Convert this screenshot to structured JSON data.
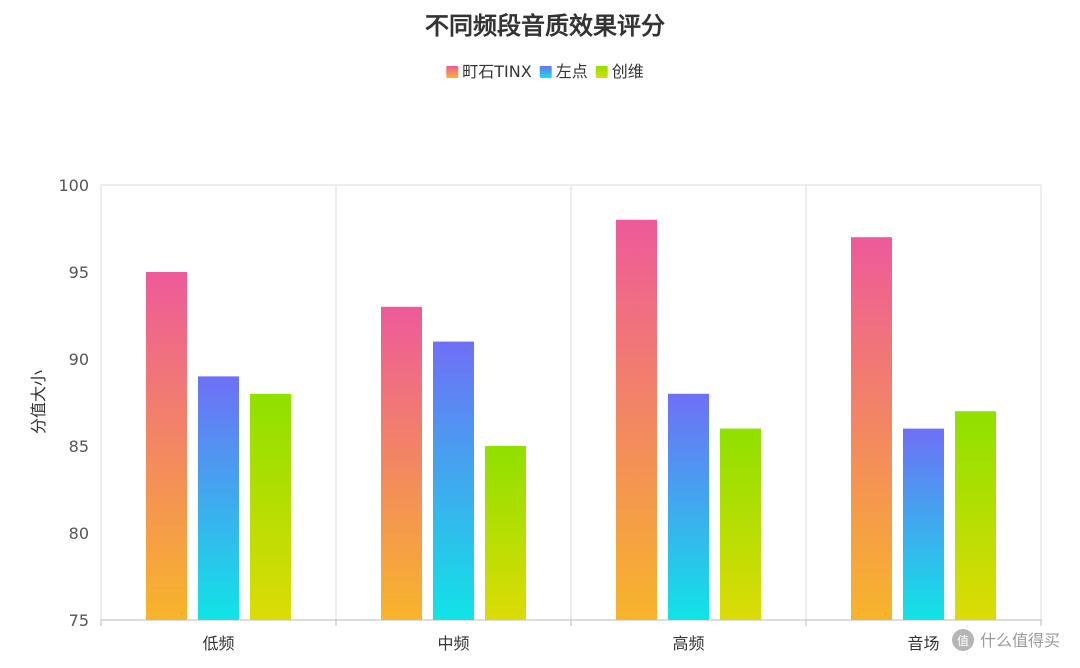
{
  "chart_data": {
    "type": "bar",
    "title": "不同频段音质效果评分",
    "xlabel": "",
    "ylabel": "分值大小",
    "categories": [
      "低频",
      "中频",
      "高频",
      "音场"
    ],
    "ylim": [
      75,
      100
    ],
    "yticks": [
      75,
      80,
      85,
      90,
      95,
      100
    ],
    "series": [
      {
        "name": "町石TINX",
        "values": [
          95,
          93,
          98,
          97
        ],
        "color_top": "#ee5a9a",
        "color_bottom": "#f7b52a"
      },
      {
        "name": "左点",
        "values": [
          89,
          91,
          88,
          86
        ],
        "color_top": "#6f6ff6",
        "color_bottom": "#10e4e6"
      },
      {
        "name": "创维",
        "values": [
          88,
          85,
          86,
          87
        ],
        "color_top": "#8fe000",
        "color_bottom": "#dcdc06"
      }
    ],
    "grid": true,
    "legend_position": "top"
  },
  "watermark": {
    "text": "什么值得买",
    "logo_char": "值"
  }
}
